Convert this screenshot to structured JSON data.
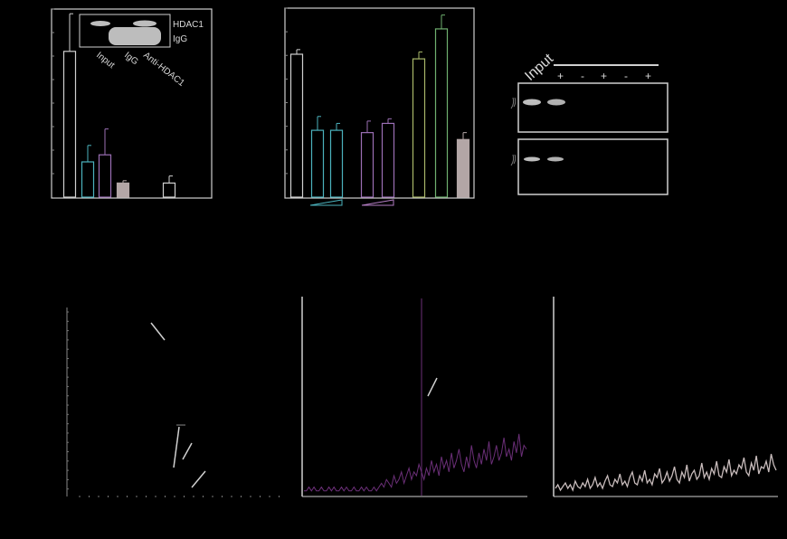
{
  "chart_data": [
    {
      "type": "bar",
      "panel": "top-left",
      "categories": [
        "",
        "",
        "",
        "",
        ""
      ],
      "values": [
        62,
        15,
        18,
        6,
        6
      ],
      "errors": [
        16,
        7,
        11,
        1,
        3
      ],
      "colors": [
        "#d0d0d0",
        "#4bb2bd",
        "#9b6fb5",
        "#b3a6a6",
        "#d0d0d0"
      ],
      "filled": [
        false,
        false,
        false,
        true,
        false
      ],
      "ylim": [
        0,
        80
      ],
      "inset": {
        "band_labels": [
          "HDAC1",
          "IgG"
        ],
        "lane_labels": [
          "Input",
          "IgG",
          "Anti-HDAC1"
        ]
      }
    },
    {
      "type": "bar",
      "panel": "top-middle",
      "categories": [
        "",
        "",
        "",
        "",
        "",
        "",
        "",
        ""
      ],
      "values": [
        62,
        29,
        29,
        28,
        32,
        60,
        73,
        25
      ],
      "errors": [
        2,
        6,
        3,
        5,
        2,
        3,
        6,
        3
      ],
      "colors": [
        "#d0d0d0",
        "#4bb2bd",
        "#4bb2bd",
        "#9b6fb5",
        "#9b6fb5",
        "#a9b86a",
        "#6fb06f",
        "#b3a6a6"
      ],
      "filled": [
        false,
        false,
        false,
        false,
        false,
        false,
        false,
        true
      ],
      "ylim": [
        0,
        82
      ]
    },
    {
      "type": "blot",
      "panel": "top-right",
      "header": [
        "Input",
        "+",
        "-",
        "+",
        "-",
        "+"
      ]
    },
    {
      "type": "line",
      "panel": "bottom-left",
      "x": [
        0,
        10,
        20,
        30,
        40,
        50,
        60,
        70,
        80,
        90,
        100
      ],
      "values": [
        0,
        0,
        0,
        0,
        0,
        0,
        0,
        0.2,
        0,
        0,
        0
      ]
    },
    {
      "type": "line",
      "panel": "bottom-middle",
      "series_color": "#6b2f78",
      "values": [
        1,
        1,
        2,
        1,
        2,
        1,
        1,
        2,
        1,
        1,
        2,
        1,
        2,
        1,
        1,
        2,
        1,
        2,
        1,
        1,
        2,
        1,
        1,
        2,
        1,
        2,
        1,
        1,
        2,
        1,
        2,
        3,
        2,
        4,
        3,
        2,
        5,
        3,
        4,
        6,
        3,
        5,
        7,
        4,
        6,
        5,
        8,
        6,
        4,
        7,
        5,
        9,
        6,
        8,
        5,
        10,
        7,
        9,
        6,
        11,
        7,
        9,
        12,
        8,
        6,
        10,
        7,
        13,
        9,
        7,
        11,
        8,
        12,
        9,
        14,
        8,
        10,
        13,
        9,
        11,
        15,
        10,
        12,
        9,
        14,
        11,
        16,
        10,
        13,
        12
      ]
    },
    {
      "type": "line",
      "panel": "bottom-right",
      "series_color": "#c8bcbc",
      "values": [
        3,
        5,
        2,
        4,
        6,
        3,
        5,
        2,
        7,
        4,
        3,
        6,
        4,
        8,
        3,
        5,
        9,
        4,
        6,
        3,
        7,
        10,
        5,
        4,
        8,
        6,
        11,
        5,
        7,
        4,
        9,
        12,
        6,
        5,
        10,
        7,
        13,
        6,
        8,
        5,
        11,
        9,
        14,
        6,
        8,
        12,
        7,
        10,
        15,
        8,
        6,
        12,
        9,
        16,
        7,
        11,
        13,
        8,
        10,
        17,
        9,
        12,
        8,
        14,
        11,
        18,
        10,
        9,
        15,
        12,
        19,
        10,
        13,
        11,
        16,
        14,
        20,
        12,
        10,
        17,
        13,
        21,
        11,
        15,
        14,
        18,
        12,
        22,
        16,
        13
      ]
    }
  ]
}
